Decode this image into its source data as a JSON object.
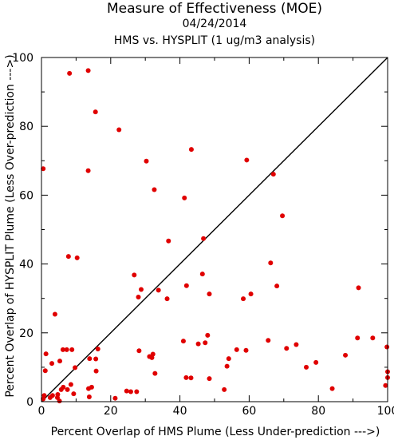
{
  "chart_data": {
    "type": "scatter",
    "title": "Measure of Effectiveness (MOE)",
    "date": "04/24/2014",
    "subtitle": "HMS vs. HYSPLIT  (1 ug/m3 analysis)",
    "xlabel": "Percent Overlap of HMS Plume (Less Under-prediction --->)",
    "ylabel": "Percent Overlap of HYSPLIT Plume (Less Over-prediction --->)",
    "xlim": [
      0,
      100
    ],
    "ylim": [
      0,
      100
    ],
    "xticks": [
      0,
      20,
      40,
      60,
      80,
      100
    ],
    "yticks": [
      0,
      20,
      40,
      60,
      80,
      100
    ],
    "tick_labels": {
      "x": [
        "0",
        "20",
        "40",
        "60",
        "80",
        "100"
      ],
      "y": [
        "0",
        "20",
        "40",
        "60",
        "80",
        "100"
      ]
    },
    "point_color": "#e00000",
    "diagonal_line": true,
    "grid": false,
    "series": [
      {
        "points": [
          [
            0.5,
            67.7
          ],
          [
            0.5,
            0.8
          ],
          [
            0.8,
            1.8
          ],
          [
            1.1,
            9.0
          ],
          [
            1.3,
            13.9
          ],
          [
            2.5,
            1.2
          ],
          [
            3.0,
            11.1
          ],
          [
            3.2,
            1.8
          ],
          [
            3.9,
            25.4
          ],
          [
            4.6,
            1.2
          ],
          [
            4.7,
            2.1
          ],
          [
            5.2,
            0.2
          ],
          [
            5.3,
            11.8
          ],
          [
            5.7,
            3.5
          ],
          [
            6.2,
            15.1
          ],
          [
            6.3,
            4.2
          ],
          [
            7.3,
            15.1
          ],
          [
            7.5,
            3.5
          ],
          [
            7.8,
            42.2
          ],
          [
            8.1,
            95.4
          ],
          [
            8.5,
            5.0
          ],
          [
            8.8,
            15.1
          ],
          [
            9.3,
            2.3
          ],
          [
            9.7,
            9.9
          ],
          [
            10.3,
            41.8
          ],
          [
            13.5,
            96.2
          ],
          [
            13.5,
            67.1
          ],
          [
            13.6,
            3.8
          ],
          [
            13.8,
            1.4
          ],
          [
            13.9,
            12.5
          ],
          [
            14.5,
            4.2
          ],
          [
            15.6,
            84.2
          ],
          [
            15.7,
            12.4
          ],
          [
            15.8,
            8.9
          ],
          [
            16.3,
            15.3
          ],
          [
            21.3,
            1.0
          ],
          [
            22.4,
            79.0
          ],
          [
            24.6,
            3.1
          ],
          [
            25.8,
            2.9
          ],
          [
            26.8,
            36.8
          ],
          [
            27.5,
            2.9
          ],
          [
            28.0,
            30.4
          ],
          [
            28.2,
            14.8
          ],
          [
            28.8,
            32.6
          ],
          [
            30.3,
            69.9
          ],
          [
            31.2,
            13.1
          ],
          [
            31.9,
            12.8
          ],
          [
            32.2,
            13.8
          ],
          [
            32.6,
            61.6
          ],
          [
            32.8,
            8.2
          ],
          [
            33.8,
            32.4
          ],
          [
            36.3,
            29.9
          ],
          [
            36.7,
            46.7
          ],
          [
            41.0,
            17.6
          ],
          [
            41.3,
            59.2
          ],
          [
            41.8,
            7.0
          ],
          [
            41.9,
            33.7
          ],
          [
            43.3,
            73.3
          ],
          [
            43.2,
            6.9
          ],
          [
            45.3,
            16.8
          ],
          [
            46.5,
            37.1
          ],
          [
            46.8,
            47.4
          ],
          [
            47.3,
            17.1
          ],
          [
            48.0,
            19.3
          ],
          [
            48.5,
            31.3
          ],
          [
            48.5,
            6.7
          ],
          [
            52.8,
            3.5
          ],
          [
            53.6,
            10.3
          ],
          [
            54.1,
            12.5
          ],
          [
            56.4,
            15.1
          ],
          [
            58.3,
            29.9
          ],
          [
            59.1,
            14.9
          ],
          [
            59.3,
            70.2
          ],
          [
            60.5,
            31.3
          ],
          [
            65.5,
            17.8
          ],
          [
            66.2,
            40.3
          ],
          [
            67.0,
            66.1
          ],
          [
            68.0,
            33.6
          ],
          [
            69.6,
            54.0
          ],
          [
            70.8,
            15.5
          ],
          [
            73.6,
            16.6
          ],
          [
            76.5,
            10.0
          ],
          [
            79.3,
            11.4
          ],
          [
            84.0,
            3.8
          ],
          [
            87.8,
            13.5
          ],
          [
            91.3,
            18.5
          ],
          [
            91.6,
            33.1
          ],
          [
            95.7,
            18.5
          ],
          [
            99.4,
            4.7
          ],
          [
            99.8,
            15.9
          ],
          [
            100.0,
            8.7
          ],
          [
            100.0,
            7.0
          ]
        ]
      }
    ]
  }
}
